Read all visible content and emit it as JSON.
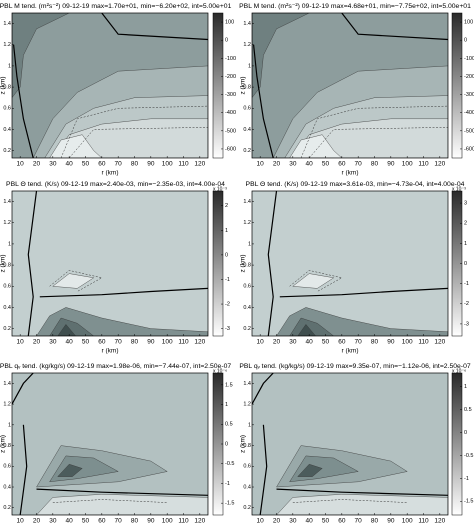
{
  "panels": [
    {
      "title": "PBL M tend. (m²s⁻²) 09-12-19 max=1.70e+01, min=−6.20e+02, int=5.00e+01",
      "xlabel": "r (km)",
      "ylabel": "z (km)",
      "xlim": [
        5,
        125
      ],
      "xticks": [
        10,
        20,
        30,
        40,
        50,
        60,
        70,
        80,
        90,
        100,
        110,
        120
      ],
      "ylim": [
        0.13,
        1.5
      ],
      "yticks": [
        0.2,
        0.4,
        0.6,
        0.8,
        1,
        1.2,
        1.4
      ],
      "cbar_lim": [
        -650,
        150
      ],
      "cbar_ticks": [
        100,
        0,
        -100,
        -200,
        -300,
        -400,
        -500,
        -600
      ]
    },
    {
      "title": "PBL M tend. (m²s⁻²) 09-12-19 max=4.68e+01, min=−7.75e+02, int=5.00e+01",
      "xlabel": "r (km)",
      "ylabel": "z (km)",
      "xlim": [
        5,
        125
      ],
      "xticks": [
        10,
        20,
        30,
        40,
        50,
        60,
        70,
        80,
        90,
        100,
        110,
        120
      ],
      "ylim": [
        0.13,
        1.5
      ],
      "yticks": [
        0.2,
        0.4,
        0.6,
        0.8,
        1,
        1.2,
        1.4
      ],
      "cbar_lim": [
        -650,
        150
      ],
      "cbar_ticks": [
        100,
        0,
        -100,
        -200,
        -300,
        -400,
        -500,
        -600
      ]
    },
    {
      "title": "PBL Θ tend. (K/s) 09-12-19 max=2.40e-03, min=−2.35e-03, int=4.00e-04",
      "xlabel": "r (km)",
      "ylabel": "z (km)",
      "xlim": [
        5,
        125
      ],
      "xticks": [
        10,
        20,
        30,
        40,
        50,
        60,
        70,
        80,
        90,
        100,
        110,
        120
      ],
      "ylim": [
        0.13,
        1.5
      ],
      "yticks": [
        0.2,
        0.4,
        0.6,
        0.8,
        1,
        1.2,
        1.4
      ],
      "cbar_exponent": "x 10⁻³",
      "cbar_lim": [
        -3.3,
        2.6
      ],
      "cbar_ticks": [
        2,
        1,
        0,
        -1,
        -2,
        -3
      ]
    },
    {
      "title": "PBL Θ tend. (K/s) 09-12-19 max=3.61e-03, min=−4.73e-04, int=4.00e-04",
      "xlabel": "r (km)",
      "ylabel": "z (km)",
      "xlim": [
        5,
        125
      ],
      "xticks": [
        10,
        20,
        30,
        40,
        50,
        60,
        70,
        80,
        90,
        100,
        110,
        120
      ],
      "ylim": [
        0.13,
        1.5
      ],
      "yticks": [
        0.2,
        0.4,
        0.6,
        0.8,
        1,
        1.2,
        1.4
      ],
      "cbar_exponent": "x 10⁻³",
      "cbar_lim": [
        -3.6,
        3.6
      ],
      "cbar_ticks": [
        3,
        2,
        1,
        0,
        -1,
        -2,
        -3
      ]
    },
    {
      "title": "PBL qᵥ tend. (kg/kg/s) 09-12-19 max=1.98e-06, min=−7.44e-07, int=2.50e-07",
      "ylabel": "z (km)",
      "xlim": [
        5,
        125
      ],
      "xticks": [
        10,
        20,
        30,
        40,
        50,
        60,
        70,
        80,
        90,
        100,
        110,
        120
      ],
      "ylim": [
        0.13,
        1.5
      ],
      "yticks": [
        0.2,
        0.4,
        0.6,
        0.8,
        1,
        1.2,
        1.4
      ],
      "cbar_exponent": "x 10⁻⁶",
      "cbar_lim": [
        -1.8,
        1.8
      ],
      "cbar_ticks": [
        1.5,
        1,
        0.5,
        0,
        -0.5,
        -1,
        -1.5
      ]
    },
    {
      "title": "PBL qᵥ tend. (kg/kg/s) 09-12-19 max=9.35e-07, min=−1.12e-06, int=2.50e-07",
      "ylabel": "z (km)",
      "xlim": [
        5,
        125
      ],
      "xticks": [
        10,
        20,
        30,
        40,
        50,
        60,
        70,
        80,
        90,
        100,
        110,
        120
      ],
      "ylim": [
        0.13,
        1.5
      ],
      "yticks": [
        0.2,
        0.4,
        0.6,
        0.8,
        1,
        1.2,
        1.4
      ],
      "cbar_exponent": "x 10⁻⁶",
      "cbar_lim": [
        -1.8,
        1.3
      ],
      "cbar_ticks": [
        1,
        0.5,
        0,
        -0.5,
        -1,
        -1.5
      ]
    }
  ]
}
